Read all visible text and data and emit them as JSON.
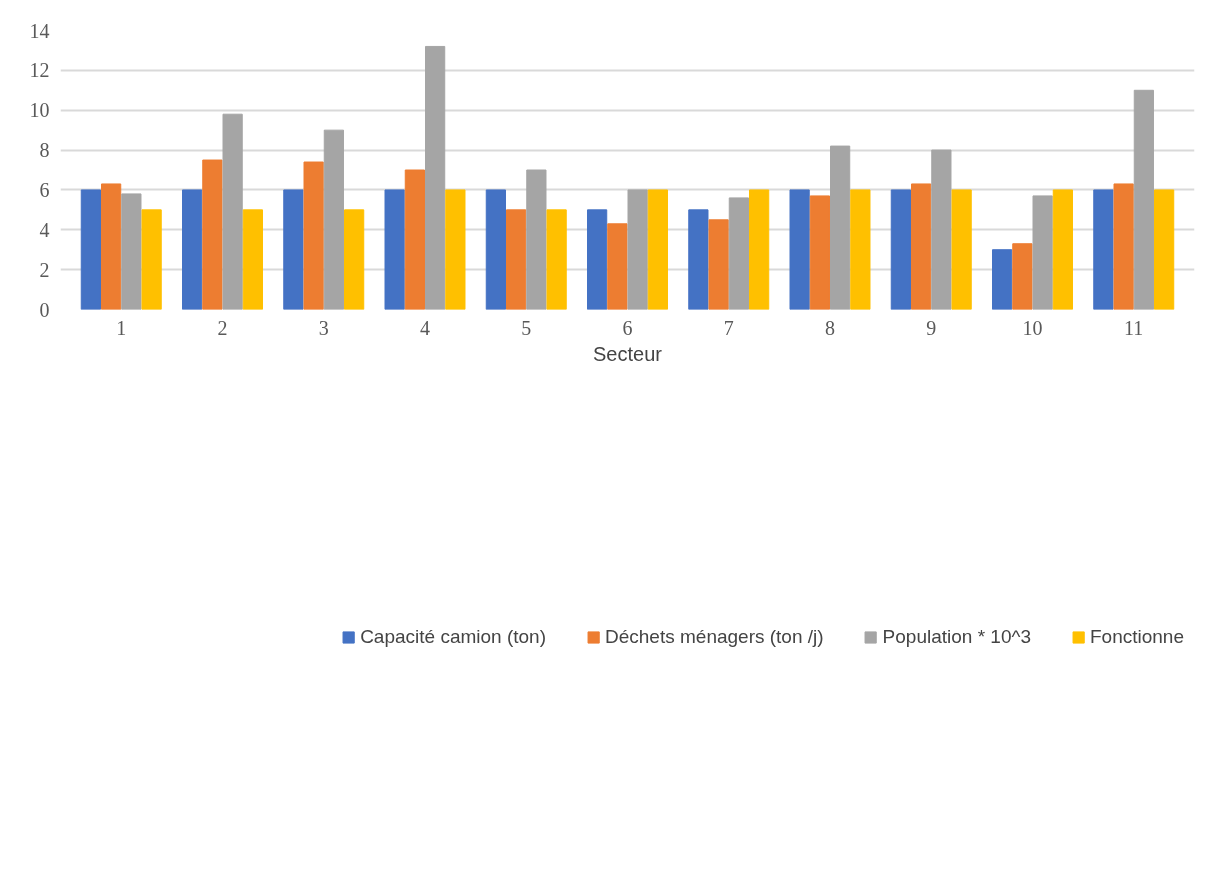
{
  "chart_data": {
    "type": "bar",
    "xlabel": "Secteur",
    "categories": [
      "1",
      "2",
      "3",
      "4",
      "5",
      "6",
      "7",
      "8",
      "9",
      "10",
      "11"
    ],
    "series": [
      {
        "name": "Capacité camion (ton)",
        "color": "#4472c4",
        "values": [
          6,
          6,
          6,
          6,
          6,
          5,
          5,
          6,
          6,
          3,
          6
        ]
      },
      {
        "name": "Déchets ménagers (ton /j)",
        "color": "#ed7d31",
        "values": [
          6.3,
          7.5,
          7.4,
          7,
          5,
          4.3,
          4.5,
          5.7,
          6.3,
          3.3,
          6.3
        ]
      },
      {
        "name": "Population * 10^3",
        "color": "#a5a5a5",
        "values": [
          5.8,
          9.8,
          9,
          13.2,
          7,
          6,
          5.6,
          8.2,
          8,
          5.7,
          11
        ]
      },
      {
        "name": "Fonctionne",
        "color": "#ffc000",
        "values": [
          5,
          5,
          5,
          6,
          5,
          6,
          6,
          6,
          6,
          6,
          6
        ]
      }
    ],
    "ylim": [
      0,
      14
    ],
    "yticks": [
      0,
      2,
      4,
      6,
      8,
      10,
      12,
      14
    ],
    "grid": "y",
    "legend": "bottom"
  }
}
